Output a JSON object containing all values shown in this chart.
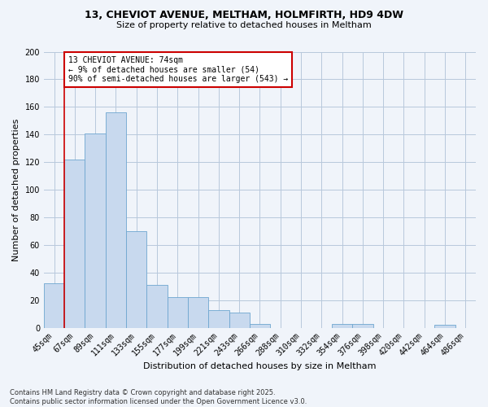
{
  "title": "13, CHEVIOT AVENUE, MELTHAM, HOLMFIRTH, HD9 4DW",
  "subtitle": "Size of property relative to detached houses in Meltham",
  "xlabel": "Distribution of detached houses by size in Meltham",
  "ylabel": "Number of detached properties",
  "bar_color": "#c8d9ee",
  "bar_edge_color": "#6ea6d0",
  "background_color": "#f0f4fa",
  "grid_color": "#b8c8dc",
  "categories": [
    "45sqm",
    "67sqm",
    "89sqm",
    "111sqm",
    "133sqm",
    "155sqm",
    "177sqm",
    "199sqm",
    "221sqm",
    "243sqm",
    "266sqm",
    "288sqm",
    "310sqm",
    "332sqm",
    "354sqm",
    "376sqm",
    "398sqm",
    "420sqm",
    "442sqm",
    "464sqm",
    "486sqm"
  ],
  "values": [
    32,
    122,
    141,
    156,
    70,
    31,
    22,
    22,
    13,
    11,
    3,
    0,
    0,
    0,
    3,
    3,
    0,
    0,
    0,
    2,
    0
  ],
  "red_line_x": 1,
  "annotation_line1": "13 CHEVIOT AVENUE: 74sqm",
  "annotation_line2": "← 9% of detached houses are smaller (54)",
  "annotation_line3": "90% of semi-detached houses are larger (543) →",
  "annotation_box_color": "#ffffff",
  "annotation_box_edge_color": "#cc0000",
  "vline_color": "#cc0000",
  "footer": "Contains HM Land Registry data © Crown copyright and database right 2025.\nContains public sector information licensed under the Open Government Licence v3.0.",
  "ylim": [
    0,
    200
  ],
  "yticks": [
    0,
    20,
    40,
    60,
    80,
    100,
    120,
    140,
    160,
    180,
    200
  ],
  "title_fontsize": 9,
  "subtitle_fontsize": 8,
  "ylabel_fontsize": 8,
  "xlabel_fontsize": 8,
  "tick_fontsize": 7,
  "annotation_fontsize": 7,
  "footer_fontsize": 6
}
